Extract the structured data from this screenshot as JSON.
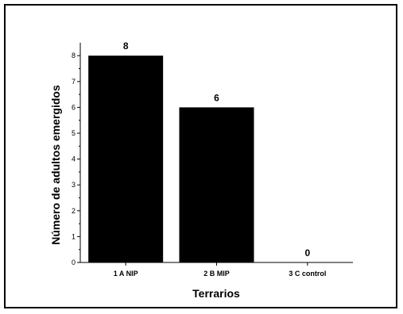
{
  "chart_data": {
    "type": "bar",
    "categories": [
      "1 A NIP",
      "2 B MIP",
      "3 C control"
    ],
    "values": [
      8,
      6,
      0
    ],
    "data_labels": [
      "8",
      "6",
      "0"
    ],
    "title": "",
    "xlabel": "Terrarios",
    "ylabel": "Número de  adultos emergidos",
    "ylim": [
      0,
      8.5
    ],
    "yticks": [
      0,
      1,
      2,
      3,
      4,
      5,
      6,
      7,
      8
    ],
    "bar_color": "#000000",
    "grid": false,
    "legend": "none"
  }
}
